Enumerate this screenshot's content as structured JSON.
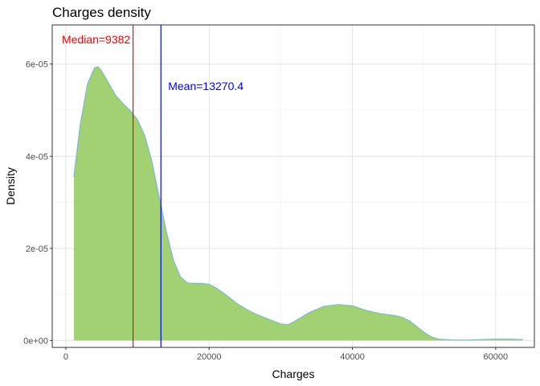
{
  "chart_data": {
    "type": "area",
    "title": "Charges density",
    "xlabel": "Charges",
    "ylabel": "Density",
    "xlim": [
      -1900,
      65400
    ],
    "ylim": [
      -1.5e-06,
      6.85e-05
    ],
    "x_ticks": [
      0,
      20000,
      40000,
      60000
    ],
    "x_tick_labels": [
      "0",
      "20000",
      "40000",
      "60000"
    ],
    "y_ticks": [
      0,
      2e-05,
      4e-05,
      6e-05
    ],
    "y_tick_labels": [
      "0e+00",
      "2e-05",
      "4e-05",
      "6e-05"
    ],
    "x_minor": [
      10000,
      30000,
      50000
    ],
    "y_minor": [
      1e-05,
      3e-05,
      5e-05
    ],
    "grid": true,
    "series": [
      {
        "x": [
          1122,
          2000,
          3000,
          4000,
          4500,
          5000,
          6000,
          7000,
          8000,
          9000,
          10000,
          11000,
          12000,
          13000,
          14000,
          15000,
          16000,
          17000,
          18000,
          19000,
          20000,
          21000,
          22000,
          23000,
          24000,
          26000,
          28000,
          30000,
          31000,
          32000,
          34000,
          36000,
          38000,
          40000,
          42000,
          44000,
          46000,
          47000,
          48000,
          49000,
          50000,
          51000,
          52000,
          54000,
          56000,
          58000,
          60000,
          62000,
          63770
        ],
        "y": [
          3.55e-05,
          4.68e-05,
          5.56e-05,
          5.92e-05,
          5.94e-05,
          5.85e-05,
          5.58e-05,
          5.31e-05,
          5.14e-05,
          4.99e-05,
          4.79e-05,
          4.45e-05,
          3.9e-05,
          3.14e-05,
          2.38e-05,
          1.75e-05,
          1.38e-05,
          1.25e-05,
          1.24e-05,
          1.24e-05,
          1.22e-05,
          1.14e-05,
          1.03e-05,
          9.1e-06,
          7.9e-06,
          6.1e-06,
          4.8e-06,
          3.6e-06,
          3.4e-06,
          4.2e-06,
          6.1e-06,
          7.4e-06,
          7.8e-06,
          7.5e-06,
          6.5e-06,
          5.8e-06,
          5.4e-06,
          5e-06,
          4.2e-06,
          3e-06,
          1.8e-06,
          8e-07,
          3e-07,
          1e-07,
          1e-07,
          2e-07,
          3e-07,
          3e-07,
          2e-07
        ],
        "fill": "#a2d174",
        "stroke": "#83b5d9"
      }
    ],
    "reference_lines": [
      {
        "x": 9382,
        "label": "Median=9382",
        "color": "#ff0000"
      },
      {
        "x": 13270.4,
        "label": "Mean=13270.4",
        "color": "#0000ff"
      }
    ]
  }
}
